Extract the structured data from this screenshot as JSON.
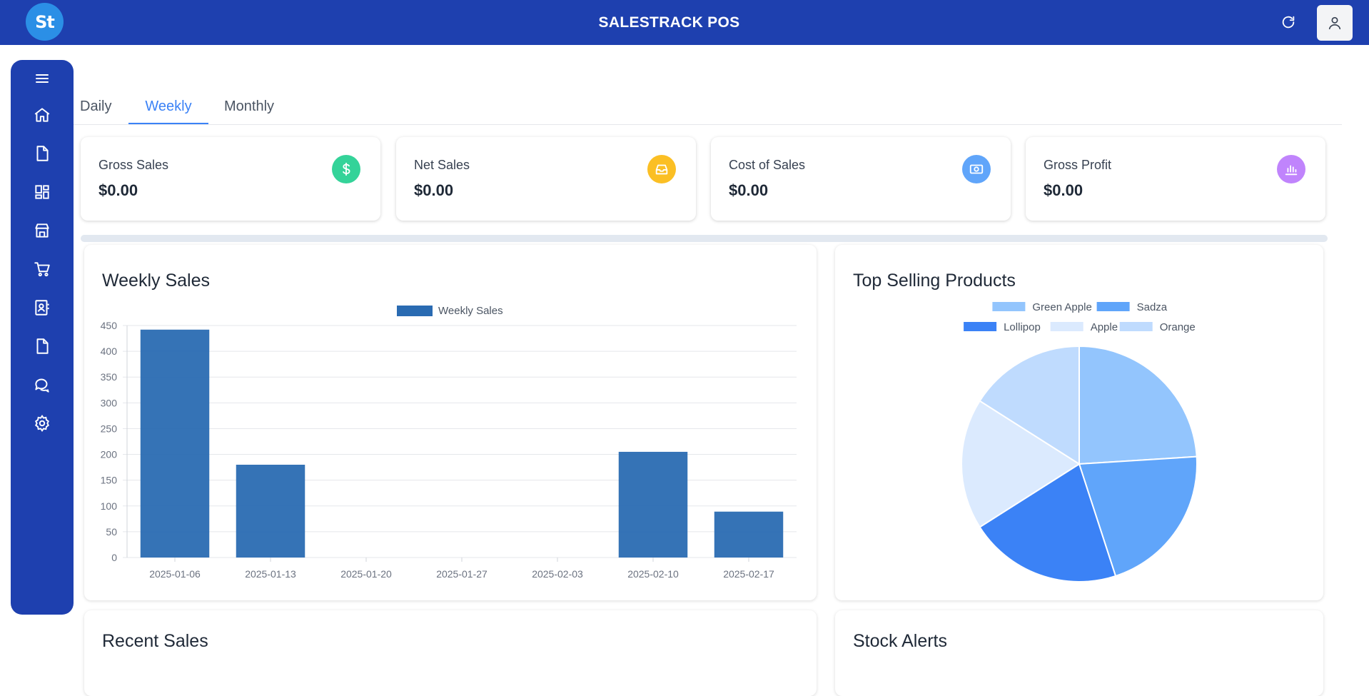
{
  "app": {
    "logo_text": "St",
    "title": "SALESTRACK POS"
  },
  "header": {
    "icons": [
      "refresh-icon",
      "user-icon"
    ]
  },
  "sidebar": {
    "icons": [
      "menu-icon",
      "home-icon",
      "document-icon",
      "dashboard-icon",
      "store-icon",
      "cart-icon",
      "contacts-icon",
      "file-icon",
      "chat-icon",
      "settings-icon"
    ]
  },
  "tabs": [
    {
      "label": "Daily"
    },
    {
      "label": "Weekly",
      "active": true
    },
    {
      "label": "Monthly"
    }
  ],
  "cards": [
    {
      "label": "Gross Sales",
      "value": "$0.00",
      "icon": "dollar-icon",
      "color": "#34d399"
    },
    {
      "label": "Net Sales",
      "value": "$0.00",
      "icon": "inbox-icon",
      "color": "#fbbf24"
    },
    {
      "label": "Cost of Sales",
      "value": "$0.00",
      "icon": "cash-icon",
      "color": "#60a5fa"
    },
    {
      "label": "Gross Profit",
      "value": "$0.00",
      "icon": "bar-chart-icon",
      "color": "#c084fc"
    }
  ],
  "panels": {
    "weekly_sales": {
      "title": "Weekly Sales"
    },
    "top_selling": {
      "title": "Top Selling Products"
    },
    "recent_sales": {
      "title": "Recent Sales"
    },
    "stock_alerts": {
      "title": "Stock Alerts"
    }
  },
  "chart_data": [
    {
      "type": "bar",
      "title": "",
      "series": [
        {
          "name": "Weekly Sales",
          "color": "#2a6bb2"
        }
      ],
      "categories": [
        "2025-01-06",
        "2025-01-13",
        "2025-01-20",
        "2025-01-27",
        "2025-02-03",
        "2025-02-10",
        "2025-02-17"
      ],
      "values": [
        442,
        180,
        0,
        0,
        0,
        205,
        89
      ],
      "ylim": [
        0,
        450
      ],
      "yticks": [
        0,
        50,
        100,
        150,
        200,
        250,
        300,
        350,
        400,
        450
      ],
      "grid": true,
      "legend": "top"
    },
    {
      "type": "pie",
      "title": "",
      "labels": [
        "Green Apple",
        "Sadza",
        "Lollipop",
        "Apple",
        "Orange"
      ],
      "values": [
        24,
        21,
        21,
        18,
        16
      ],
      "colors": [
        "#93c5fd",
        "#60a5fa",
        "#3b82f6",
        "#dbeafe",
        "#bfdbfe"
      ],
      "legend": "top"
    }
  ]
}
